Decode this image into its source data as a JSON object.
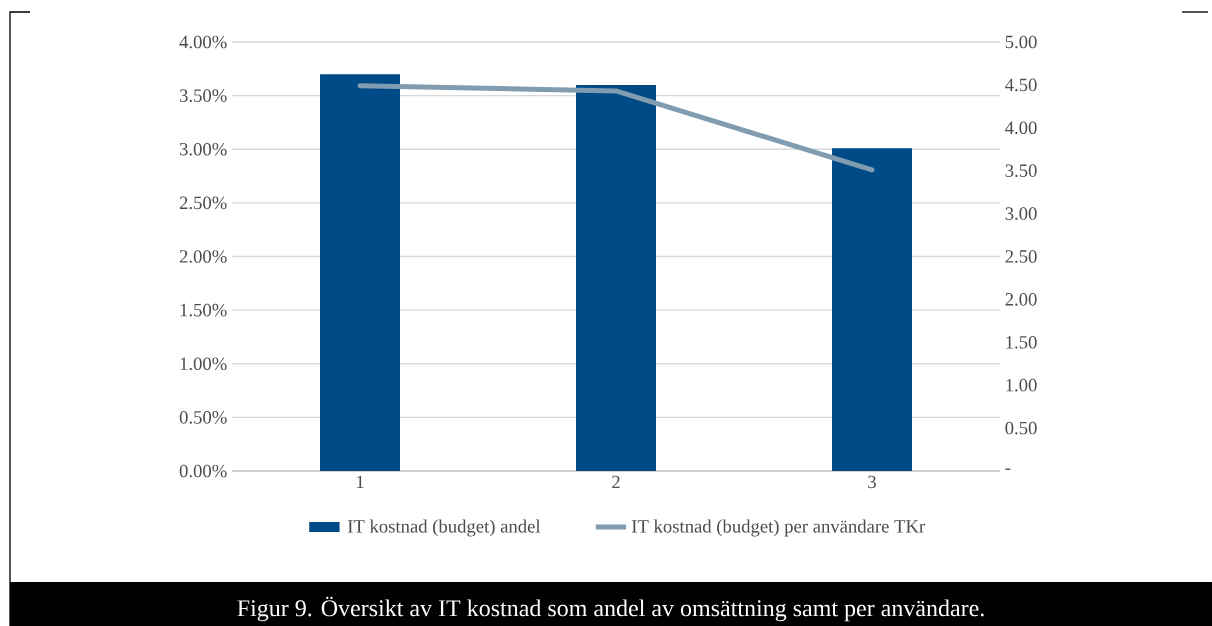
{
  "chart_data": {
    "type": "bar",
    "categories": [
      "1",
      "2",
      "3"
    ],
    "series": [
      {
        "name": "IT kostnad (budget) andel",
        "color": "#004b87",
        "values": [
          3.7,
          3.6,
          3.01
        ]
      },
      {
        "name": "IT kostnad (budget) per användare TKr",
        "type": "line",
        "axis": "y2",
        "color": "#7f9cb0",
        "values": [
          4.49,
          4.43,
          3.51
        ]
      }
    ],
    "ylim": [
      0,
      4
    ],
    "yticks": [
      {
        "value": 0,
        "label": "0.00%"
      },
      {
        "value": 0.5,
        "label": "0.50%"
      },
      {
        "value": 1,
        "label": "1.00%"
      },
      {
        "value": 1.5,
        "label": "1.50%"
      },
      {
        "value": 2,
        "label": "2.00%"
      },
      {
        "value": 2.5,
        "label": "2.50%"
      },
      {
        "value": 3,
        "label": "3.00%"
      },
      {
        "value": 3.5,
        "label": "3.50%"
      },
      {
        "value": 4,
        "label": "4.00%"
      }
    ],
    "y2lim": [
      0,
      5
    ],
    "y2ticks": [
      {
        "value": 0,
        "label": "-"
      },
      {
        "value": 0.5,
        "label": "0.50"
      },
      {
        "value": 1,
        "label": "1.00"
      },
      {
        "value": 1.5,
        "label": "1.50"
      },
      {
        "value": 2,
        "label": "2.00"
      },
      {
        "value": 2.5,
        "label": "2.50"
      },
      {
        "value": 3,
        "label": "3.00"
      },
      {
        "value": 3.5,
        "label": "3.50"
      },
      {
        "value": 4,
        "label": "4.00"
      },
      {
        "value": 4.5,
        "label": "4.50"
      },
      {
        "value": 5,
        "label": "5.00"
      }
    ],
    "grid": "y",
    "legend": "bottom",
    "marker": "none",
    "annotations": [
      "Figur 9. Översikt av IT kostnad som andel av omsättning samt per användare."
    ]
  }
}
